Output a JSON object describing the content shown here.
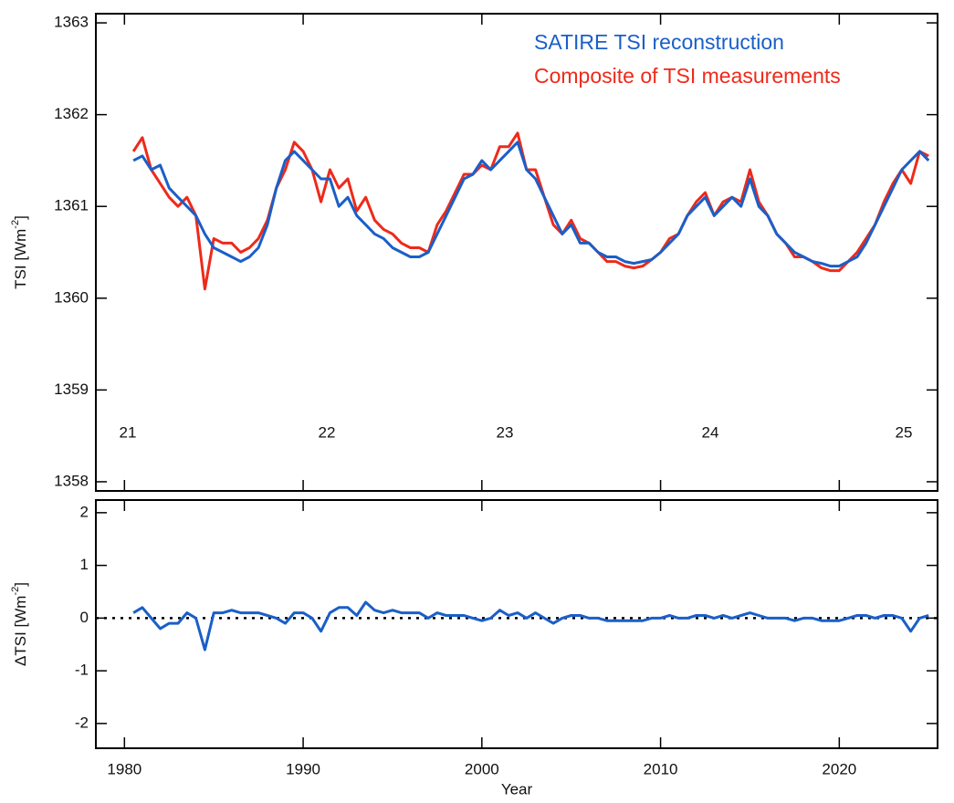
{
  "chart_data": [
    {
      "type": "line",
      "y_label_parts": [
        "TSI [Wm",
        "-2",
        "]"
      ],
      "x": [
        1980.5,
        1981,
        1981.5,
        1982,
        1982.5,
        1983,
        1983.5,
        1984,
        1984.5,
        1985,
        1985.5,
        1986,
        1986.5,
        1987,
        1987.5,
        1988,
        1988.5,
        1989,
        1989.5,
        1990,
        1990.5,
        1991,
        1991.5,
        1992,
        1992.5,
        1993,
        1993.5,
        1994,
        1994.5,
        1995,
        1995.5,
        1996,
        1996.5,
        1997,
        1997.5,
        1998,
        1998.5,
        1999,
        1999.5,
        2000,
        2000.5,
        2001,
        2001.5,
        2002,
        2002.5,
        2003,
        2003.5,
        2004,
        2004.5,
        2005,
        2005.5,
        2006,
        2006.5,
        2007,
        2007.5,
        2008,
        2008.5,
        2009,
        2009.5,
        2010,
        2010.5,
        2011,
        2011.5,
        2012,
        2012.5,
        2013,
        2013.5,
        2014,
        2014.5,
        2015,
        2015.5,
        2016,
        2016.5,
        2017,
        2017.5,
        2018,
        2018.5,
        2019,
        2019.5,
        2020,
        2020.5,
        2021,
        2021.5,
        2022,
        2022.5,
        2023,
        2023.5,
        2024,
        2024.5,
        2025
      ],
      "series": [
        {
          "name": "Composite of TSI measurements",
          "color": "#ee2a1a",
          "values": [
            1361.6,
            1361.75,
            1361.4,
            1361.25,
            1361.1,
            1361.0,
            1361.1,
            1360.9,
            1360.1,
            1360.65,
            1360.6,
            1360.6,
            1360.5,
            1360.55,
            1360.65,
            1360.85,
            1361.2,
            1361.4,
            1361.7,
            1361.6,
            1361.4,
            1361.05,
            1361.4,
            1361.2,
            1361.3,
            1360.95,
            1361.1,
            1360.85,
            1360.75,
            1360.7,
            1360.6,
            1360.55,
            1360.55,
            1360.5,
            1360.8,
            1360.95,
            1361.15,
            1361.35,
            1361.35,
            1361.45,
            1361.4,
            1361.65,
            1361.65,
            1361.8,
            1361.4,
            1361.4,
            1361.1,
            1360.8,
            1360.7,
            1360.85,
            1360.65,
            1360.6,
            1360.5,
            1360.4,
            1360.4,
            1360.35,
            1360.33,
            1360.35,
            1360.42,
            1360.5,
            1360.65,
            1360.7,
            1360.9,
            1361.05,
            1361.15,
            1360.9,
            1361.05,
            1361.1,
            1361.05,
            1361.4,
            1361.05,
            1360.9,
            1360.7,
            1360.6,
            1360.45,
            1360.45,
            1360.4,
            1360.33,
            1360.3,
            1360.3,
            1360.4,
            1360.5,
            1360.65,
            1360.8,
            1361.05,
            1361.25,
            1361.4,
            1361.25,
            1361.6,
            1361.55
          ]
        },
        {
          "name": "SATIRE TSI reconstruction",
          "color": "#1a5fc8",
          "values": [
            1361.5,
            1361.55,
            1361.4,
            1361.45,
            1361.2,
            1361.1,
            1361.0,
            1360.9,
            1360.7,
            1360.55,
            1360.5,
            1360.45,
            1360.4,
            1360.45,
            1360.55,
            1360.8,
            1361.2,
            1361.5,
            1361.6,
            1361.5,
            1361.4,
            1361.3,
            1361.3,
            1361.0,
            1361.1,
            1360.9,
            1360.8,
            1360.7,
            1360.65,
            1360.55,
            1360.5,
            1360.45,
            1360.45,
            1360.5,
            1360.7,
            1360.9,
            1361.1,
            1361.3,
            1361.35,
            1361.5,
            1361.4,
            1361.5,
            1361.6,
            1361.7,
            1361.4,
            1361.3,
            1361.1,
            1360.9,
            1360.7,
            1360.8,
            1360.6,
            1360.6,
            1360.5,
            1360.45,
            1360.45,
            1360.4,
            1360.38,
            1360.4,
            1360.42,
            1360.5,
            1360.6,
            1360.7,
            1360.9,
            1361.0,
            1361.1,
            1360.9,
            1361.0,
            1361.1,
            1361.0,
            1361.3,
            1361.0,
            1360.9,
            1360.7,
            1360.6,
            1360.5,
            1360.45,
            1360.4,
            1360.38,
            1360.35,
            1360.35,
            1360.4,
            1360.45,
            1360.6,
            1360.8,
            1361.0,
            1361.2,
            1361.4,
            1361.5,
            1361.6,
            1361.5
          ]
        }
      ],
      "annotations": [
        "21",
        "22",
        "23",
        "24",
        "25"
      ],
      "xlim": [
        1978.4,
        2025.5
      ],
      "ylim": [
        1357.9,
        1363.1
      ],
      "yticks": [
        1358,
        1359,
        1360,
        1361,
        1362,
        1363
      ]
    },
    {
      "type": "line",
      "y_label_parts": [
        "ΔTSI [Wm",
        "-2",
        "]"
      ],
      "x_label": "Year",
      "x": [
        1980.5,
        1981,
        1981.5,
        1982,
        1982.5,
        1983,
        1983.5,
        1984,
        1984.5,
        1985,
        1985.5,
        1986,
        1986.5,
        1987,
        1987.5,
        1988,
        1988.5,
        1989,
        1989.5,
        1990,
        1990.5,
        1991,
        1991.5,
        1992,
        1992.5,
        1993,
        1993.5,
        1994,
        1994.5,
        1995,
        1995.5,
        1996,
        1996.5,
        1997,
        1997.5,
        1998,
        1998.5,
        1999,
        1999.5,
        2000,
        2000.5,
        2001,
        2001.5,
        2002,
        2002.5,
        2003,
        2003.5,
        2004,
        2004.5,
        2005,
        2005.5,
        2006,
        2006.5,
        2007,
        2007.5,
        2008,
        2008.5,
        2009,
        2009.5,
        2010,
        2010.5,
        2011,
        2011.5,
        2012,
        2012.5,
        2013,
        2013.5,
        2014,
        2014.5,
        2015,
        2015.5,
        2016,
        2016.5,
        2017,
        2017.5,
        2018,
        2018.5,
        2019,
        2019.5,
        2020,
        2020.5,
        2021,
        2021.5,
        2022,
        2022.5,
        2023,
        2023.5,
        2024,
        2024.5,
        2025
      ],
      "series": [
        {
          "color": "#1a5fc8",
          "values": [
            0.1,
            0.2,
            0.0,
            -0.2,
            -0.1,
            -0.1,
            0.1,
            0.0,
            -0.6,
            0.1,
            0.1,
            0.15,
            0.1,
            0.1,
            0.1,
            0.05,
            0.0,
            -0.1,
            0.1,
            0.1,
            0.0,
            -0.25,
            0.1,
            0.2,
            0.2,
            0.05,
            0.3,
            0.15,
            0.1,
            0.15,
            0.1,
            0.1,
            0.1,
            0.0,
            0.1,
            0.05,
            0.05,
            0.05,
            0.0,
            -0.05,
            0.0,
            0.15,
            0.05,
            0.1,
            0.0,
            0.1,
            0.0,
            -0.1,
            0.0,
            0.05,
            0.05,
            0.0,
            0.0,
            -0.05,
            -0.05,
            -0.05,
            -0.05,
            -0.05,
            0.0,
            0.0,
            0.05,
            0.0,
            0.0,
            0.05,
            0.05,
            0.0,
            0.05,
            0.0,
            0.05,
            0.1,
            0.05,
            0.0,
            0.0,
            0.0,
            -0.05,
            0.0,
            0.0,
            -0.05,
            -0.05,
            -0.05,
            0.0,
            0.05,
            0.05,
            0.0,
            0.05,
            0.05,
            0.0,
            -0.25,
            0.0,
            0.05
          ]
        }
      ],
      "zero_line": true,
      "xlim": [
        1978.4,
        2025.5
      ],
      "xticks": [
        1980,
        1990,
        2000,
        2010,
        2020
      ],
      "ylim": [
        -2.47,
        2.24
      ],
      "yticks": [
        -2,
        -1,
        0,
        1,
        2
      ]
    }
  ]
}
